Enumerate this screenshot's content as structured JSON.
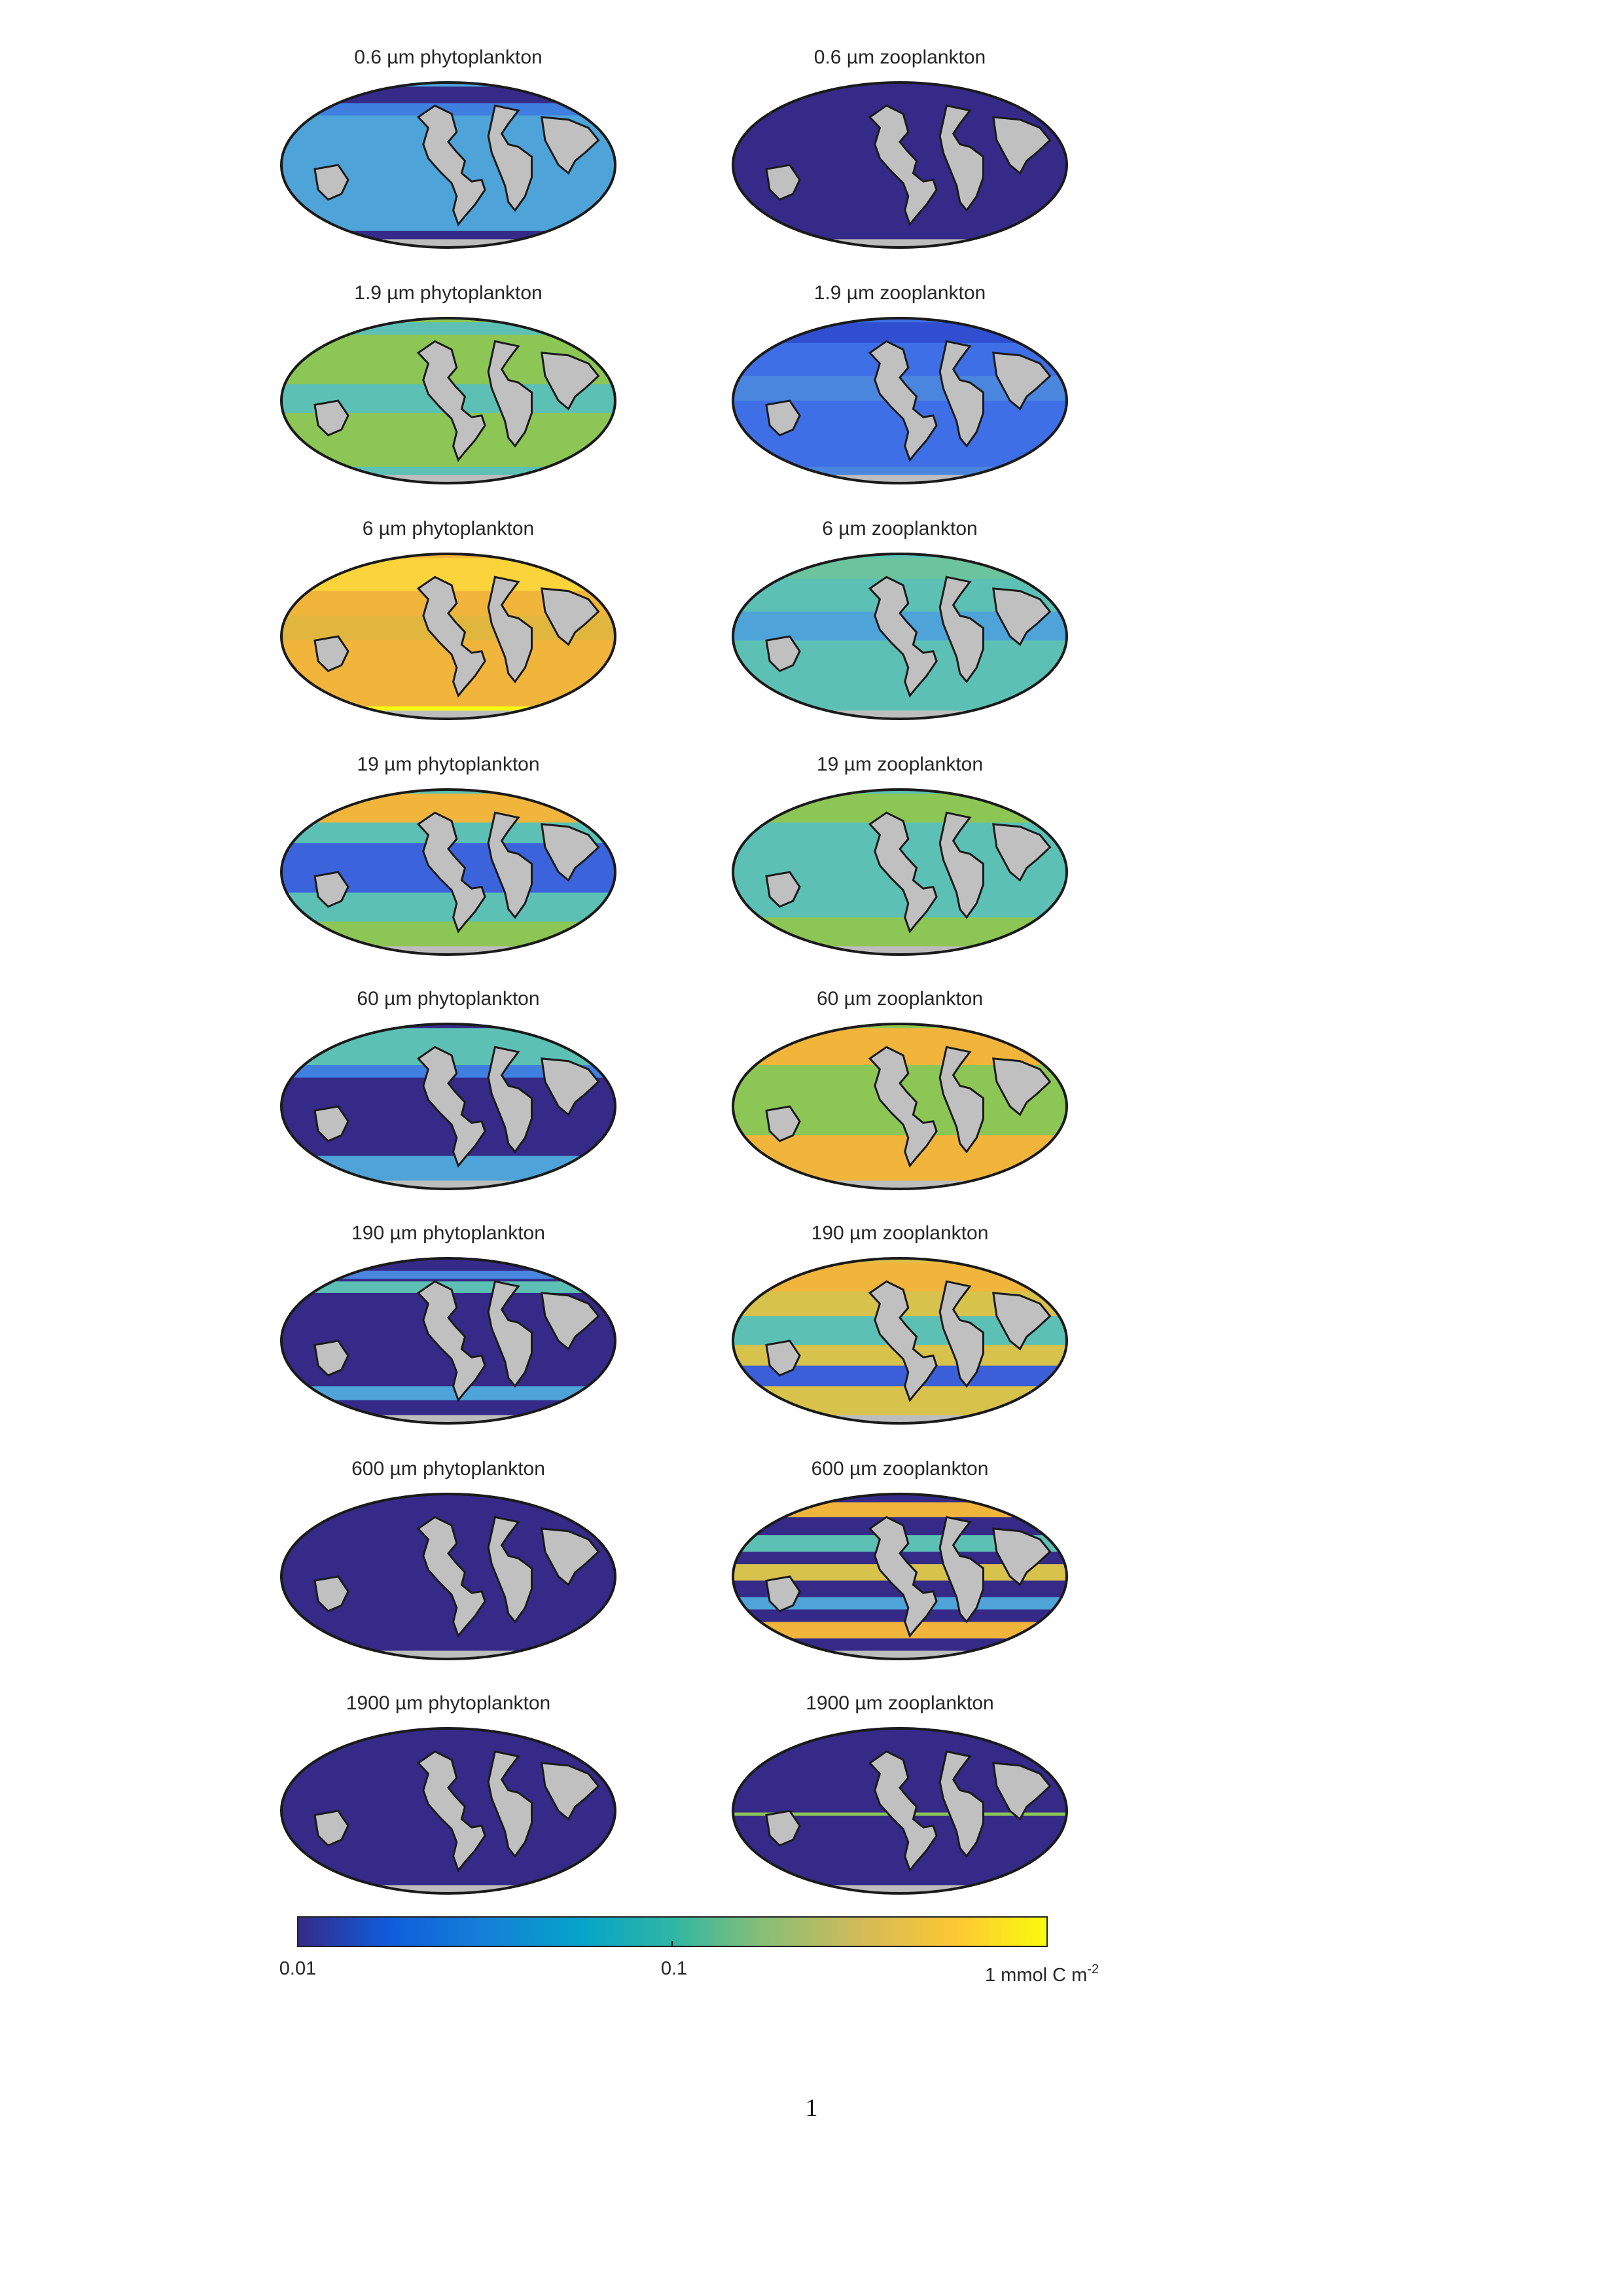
{
  "palette": {
    "ocean_low": "#352a87",
    "ocean_mid": "#4ea4d8",
    "ocean_teal": "#5cc1b4",
    "ocean_green": "#8cc655",
    "ocean_orange": "#f2b53c",
    "ocean_high": "#f9fb0e",
    "land": "#c0c0c0",
    "coast": "#1a1a1a",
    "antarctic": "#bdbdbd"
  },
  "panels": [
    {
      "title": "0.6 µm phytoplankton",
      "pattern": "mid"
    },
    {
      "title": "0.6 µm zooplankton",
      "pattern": "low"
    },
    {
      "title": "1.9 µm phytoplankton",
      "pattern": "green"
    },
    {
      "title": "1.9 µm zooplankton",
      "pattern": "blue"
    },
    {
      "title": "6 µm phytoplankton",
      "pattern": "high"
    },
    {
      "title": "6 µm zooplankton",
      "pattern": "teal"
    },
    {
      "title": "19 µm phytoplankton",
      "pattern": "mixed_blue"
    },
    {
      "title": "19 µm zooplankton",
      "pattern": "teal_green"
    },
    {
      "title": "60 µm phytoplankton",
      "pattern": "patchy_low"
    },
    {
      "title": "60 µm zooplankton",
      "pattern": "green_orange"
    },
    {
      "title": "190 µm phytoplankton",
      "pattern": "low_band"
    },
    {
      "title": "190 µm zooplankton",
      "pattern": "orange_patchy"
    },
    {
      "title": "600 µm phytoplankton",
      "pattern": "low"
    },
    {
      "title": "600 µm zooplankton",
      "pattern": "stripes"
    },
    {
      "title": "1900 µm phytoplankton",
      "pattern": "low"
    },
    {
      "title": "1900 µm zooplankton",
      "pattern": "low_specks"
    }
  ],
  "colorbar": {
    "tick_labels": [
      "0.01",
      "0.1"
    ],
    "unit_label": "1 mmol C m",
    "unit_superscript": "-2",
    "scale": "log",
    "range": [
      0.01,
      1
    ]
  },
  "page_number": "1"
}
